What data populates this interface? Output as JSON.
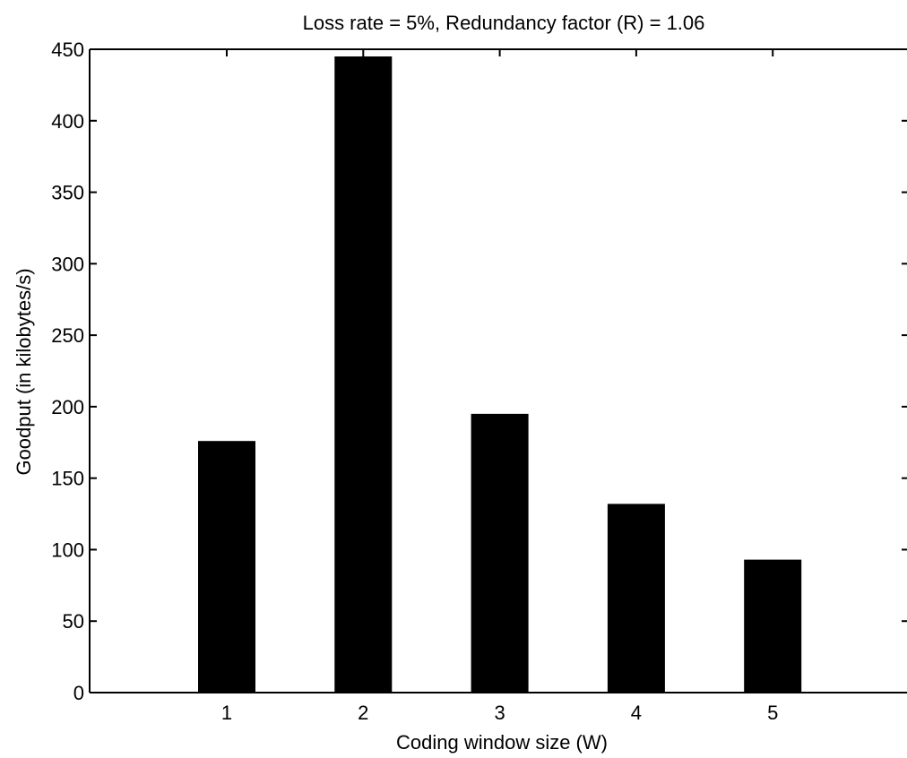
{
  "chart_data": {
    "type": "bar",
    "title": "Loss rate = 5%, Redundancy factor (R) = 1.06",
    "xlabel": "Coding window size (W)",
    "ylabel": "Goodput (in kilobytes/s)",
    "categories": [
      "1",
      "2",
      "3",
      "4",
      "5"
    ],
    "values": [
      176,
      445,
      195,
      132,
      93
    ],
    "ylim": [
      0,
      450
    ],
    "yticks": [
      0,
      50,
      100,
      150,
      200,
      250,
      300,
      350,
      400,
      450
    ],
    "grid": false,
    "bar_color": "#000000"
  }
}
